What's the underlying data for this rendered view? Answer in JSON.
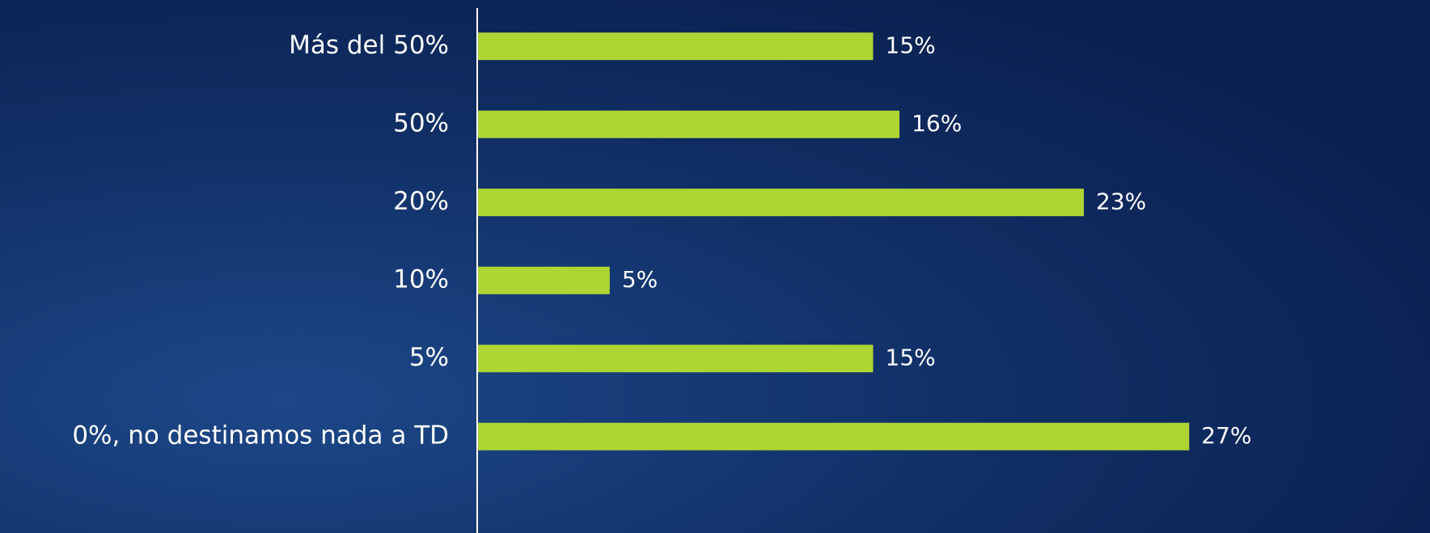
{
  "chart_data": {
    "type": "bar",
    "orientation": "horizontal",
    "categories": [
      "Más del 50%",
      "50%",
      "20%",
      "10%",
      "5%",
      "0%, no destinamos nada a TD"
    ],
    "values": [
      15,
      16,
      23,
      5,
      15,
      27
    ],
    "value_labels": [
      "15%",
      "16%",
      "23%",
      "5%",
      "15%",
      "27%"
    ],
    "color": "#add633",
    "xlim": [
      0,
      30
    ]
  }
}
